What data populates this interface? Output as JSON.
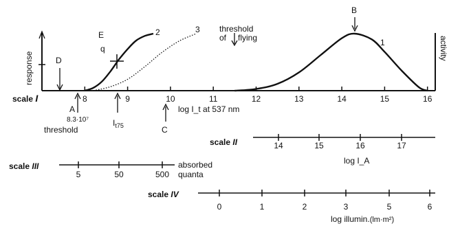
{
  "chart_data": {
    "type": "line",
    "title": "",
    "xlabel": "log I_t at 537 nm",
    "ylabel_left": "response",
    "ylabel_right": "activity",
    "axis_main": {
      "label": "scale I",
      "name_main": "scale",
      "name_sub": "I",
      "xlim": [
        7,
        16.2
      ],
      "ticks": [
        "8",
        "9",
        "10",
        "11",
        "12",
        "13",
        "14",
        "15",
        "16"
      ]
    },
    "axis_II": {
      "label": "scale II",
      "name_main": "scale",
      "name_sub": "II",
      "title": "log I_A",
      "ticks": [
        "14",
        "15",
        "16",
        "17"
      ]
    },
    "axis_III": {
      "label": "scale III",
      "name_main": "scale",
      "name_sub": "III",
      "title_line1": "absorbed",
      "title_line2": "quanta",
      "ticks": [
        "5",
        "50",
        "500"
      ]
    },
    "axis_IV": {
      "label": "scale IV",
      "name_main": "scale",
      "name_sub": "IV",
      "title": "log illumin.(lm·m²)",
      "title_main": "log illumin.",
      "title_paren": "(lm·m²)",
      "ticks": [
        "0",
        "1",
        "2",
        "3",
        "5",
        "6"
      ]
    },
    "series": [
      {
        "name": "1",
        "style": "solid",
        "x": [
          11.5,
          12.0,
          12.5,
          13.0,
          13.5,
          14.0,
          14.3,
          14.7,
          15.0,
          15.4,
          15.8,
          16.0
        ],
        "y": [
          0.0,
          0.03,
          0.12,
          0.32,
          0.62,
          0.92,
          1.0,
          0.9,
          0.68,
          0.35,
          0.06,
          0.0
        ]
      },
      {
        "name": "2",
        "style": "solid",
        "x": [
          8.0,
          8.2,
          8.4,
          8.6,
          8.8,
          9.0,
          9.2,
          9.4,
          9.6
        ],
        "y": [
          0.0,
          0.05,
          0.16,
          0.34,
          0.55,
          0.73,
          0.88,
          0.96,
          1.0
        ]
      },
      {
        "name": "3",
        "style": "dotted",
        "x": [
          8.2,
          8.6,
          9.0,
          9.4,
          9.8,
          10.2,
          10.6
        ],
        "y": [
          0.0,
          0.07,
          0.2,
          0.42,
          0.67,
          0.87,
          1.0
        ]
      }
    ],
    "annotations": {
      "threshold_flying_line1": "threshold",
      "threshold_flying_line2": "of",
      "threshold_flying_line3": "flying",
      "threshold_flying": "threshold of flying",
      "B": "B",
      "D": "D",
      "E": "E",
      "A": "A",
      "A_value": "8.3·10⁷",
      "A_threshold": "threshold",
      "C": "C",
      "I75_main": "I",
      "I75_sub": "t75",
      "q_mark": "q"
    }
  }
}
